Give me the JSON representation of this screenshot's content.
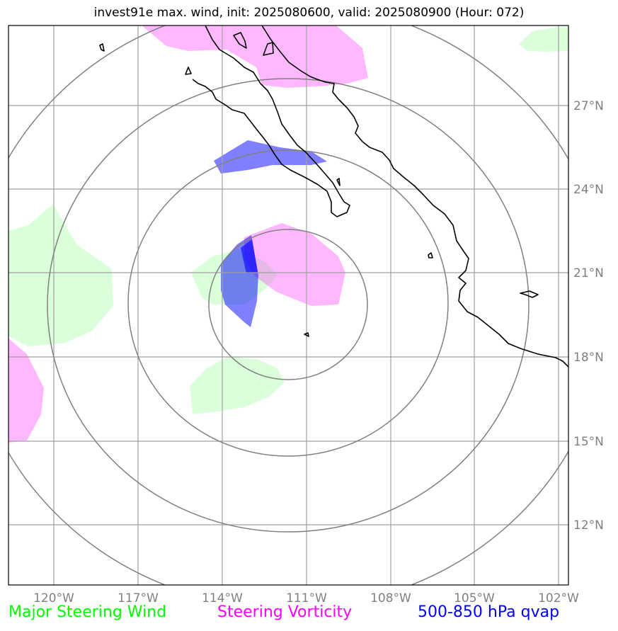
{
  "title": "invest91e max. wind, init: 2025080600, valid: 2025080900 (Hour: 072)",
  "map": {
    "lat_labels": [
      "27°N",
      "24°N",
      "21°N",
      "18°N",
      "15°N",
      "12°N"
    ],
    "lon_labels": [
      "120°W",
      "117°W",
      "114°W",
      "111°W",
      "108°W",
      "105°W",
      "102°W"
    ],
    "lat_values": [
      27,
      24,
      21,
      18,
      15,
      12
    ],
    "lon_values": [
      -120,
      -117,
      -114,
      -111,
      -108,
      -105,
      -102
    ],
    "colors": {
      "steering_wind": "#00ff00",
      "steering_vorticity": "#ff00ff",
      "qvap": "#0000ff",
      "range_rings": "#808080",
      "gridlines": "#a0a0a0",
      "coastline": "#000000"
    }
  },
  "legend": {
    "wind": "Major Steering Wind",
    "vorticity": "Steering Vorticity",
    "qvap": "500-850 hPa qvap"
  }
}
